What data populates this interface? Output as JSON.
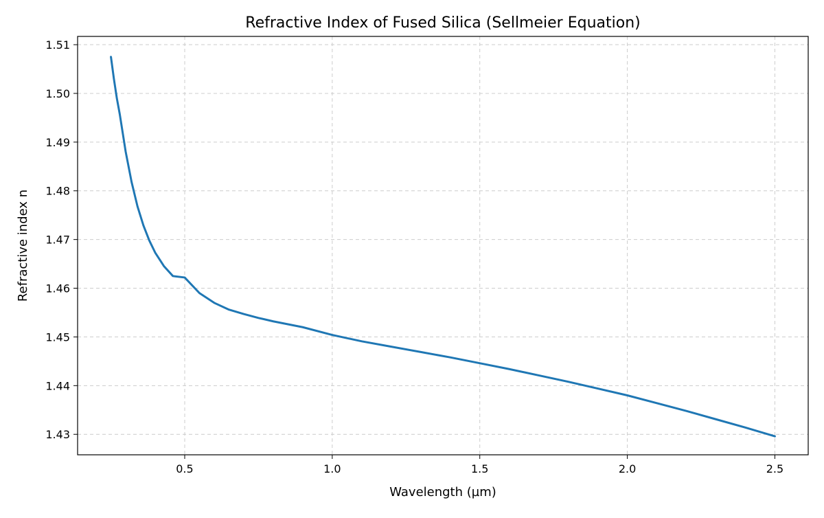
{
  "chart_data": {
    "type": "line",
    "title": "Refractive Index of Fused Silica (Sellmeier Equation)",
    "xlabel": "Wavelength (µm)",
    "ylabel": "Refractive index n",
    "xlim": [
      0.137,
      2.613
    ],
    "ylim": [
      1.4258,
      1.5117
    ],
    "xticks": [
      0.5,
      1.0,
      1.5,
      2.0,
      2.5
    ],
    "xtick_labels": [
      "0.5",
      "1.0",
      "1.5",
      "2.0",
      "2.5"
    ],
    "yticks": [
      1.43,
      1.44,
      1.45,
      1.46,
      1.47,
      1.48,
      1.49,
      1.5,
      1.51
    ],
    "ytick_labels": [
      "1.43",
      "1.44",
      "1.45",
      "1.46",
      "1.47",
      "1.48",
      "1.49",
      "1.50",
      "1.51"
    ],
    "grid": true,
    "grid_style": "dashed",
    "colors": {
      "line": "#1f77b4",
      "grid": "#cccccc",
      "axis": "#000000"
    },
    "series": [
      {
        "x": [
          0.25,
          0.26,
          0.27,
          0.28,
          0.3,
          0.32,
          0.34,
          0.36,
          0.38,
          0.4,
          0.43,
          0.46,
          0.5,
          0.55,
          0.6,
          0.65,
          0.7,
          0.75,
          0.8,
          0.85,
          0.9,
          1.0,
          1.1,
          1.2,
          1.3,
          1.4,
          1.5,
          1.6,
          1.7,
          1.8,
          1.9,
          2.0,
          2.1,
          2.2,
          2.3,
          2.4,
          2.5
        ],
        "values": [
          1.5075,
          1.503,
          1.499,
          1.4957,
          1.488,
          1.4818,
          1.4768,
          1.4729,
          1.4698,
          1.4673,
          1.4645,
          1.4625,
          1.4622,
          1.459,
          1.457,
          1.4556,
          1.4547,
          1.4539,
          1.4532,
          1.4526,
          1.452,
          1.4504,
          1.4491,
          1.448,
          1.4469,
          1.4458,
          1.4446,
          1.4434,
          1.4421,
          1.4408,
          1.4394,
          1.438,
          1.4364,
          1.4348,
          1.4331,
          1.4314,
          1.4296
        ]
      }
    ]
  }
}
